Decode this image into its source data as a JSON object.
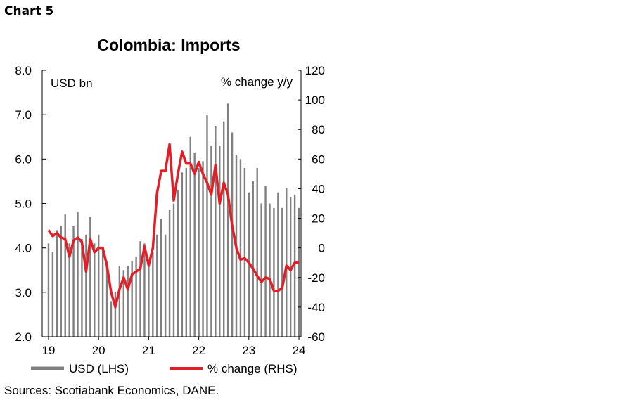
{
  "page": {
    "label": "Chart 5",
    "source": "Sources: Scotiabank Economics, DANE."
  },
  "chart_data": {
    "type": "bar+line",
    "title": "Colombia: Imports",
    "left_axis": {
      "unit_label": "USD bn",
      "ylim": [
        2.0,
        8.0
      ],
      "ticks": [
        "2.0",
        "3.0",
        "4.0",
        "5.0",
        "6.0",
        "7.0",
        "8.0"
      ]
    },
    "right_axis": {
      "unit_label": "% change y/y",
      "ylim": [
        -60,
        120
      ],
      "ticks": [
        "-60",
        "-40",
        "-20",
        "0",
        "20",
        "40",
        "60",
        "80",
        "100",
        "120"
      ]
    },
    "x_ticks": [
      "19",
      "20",
      "21",
      "22",
      "23",
      "24"
    ],
    "months": [
      "2019-01",
      "2019-02",
      "2019-03",
      "2019-04",
      "2019-05",
      "2019-06",
      "2019-07",
      "2019-08",
      "2019-09",
      "2019-10",
      "2019-11",
      "2019-12",
      "2020-01",
      "2020-02",
      "2020-03",
      "2020-04",
      "2020-05",
      "2020-06",
      "2020-07",
      "2020-08",
      "2020-09",
      "2020-10",
      "2020-11",
      "2020-12",
      "2021-01",
      "2021-02",
      "2021-03",
      "2021-04",
      "2021-05",
      "2021-06",
      "2021-07",
      "2021-08",
      "2021-09",
      "2021-10",
      "2021-11",
      "2021-12",
      "2022-01",
      "2022-02",
      "2022-03",
      "2022-04",
      "2022-05",
      "2022-06",
      "2022-07",
      "2022-08",
      "2022-09",
      "2022-10",
      "2022-11",
      "2022-12",
      "2023-01",
      "2023-02",
      "2023-03",
      "2023-04",
      "2023-05",
      "2023-06",
      "2023-07",
      "2023-08",
      "2023-09",
      "2023-10",
      "2023-11",
      "2023-12",
      "2024-01"
    ],
    "series": [
      {
        "name": "USD (LHS)",
        "type": "bar",
        "axis": "left",
        "color": "#808080",
        "values": [
          4.1,
          3.9,
          4.4,
          4.5,
          4.75,
          4.1,
          4.5,
          4.8,
          4.2,
          4.3,
          4.7,
          4.1,
          4.3,
          4.0,
          3.7,
          2.8,
          3.0,
          3.6,
          3.5,
          3.6,
          3.7,
          3.8,
          4.15,
          4.1,
          3.6,
          3.9,
          4.3,
          4.65,
          4.3,
          4.85,
          5.0,
          5.3,
          5.7,
          5.8,
          6.5,
          6.15,
          5.8,
          5.95,
          7.0,
          6.3,
          6.75,
          6.3,
          6.85,
          7.25,
          6.6,
          6.1,
          6.0,
          5.8,
          5.25,
          5.5,
          5.8,
          5.0,
          5.4,
          5.0,
          4.9,
          5.25,
          4.9,
          5.35,
          5.15,
          5.2,
          4.9
        ]
      },
      {
        "name": "% change (RHS)",
        "type": "line",
        "axis": "right",
        "color": "#e41e26",
        "values": [
          12,
          8,
          10,
          7,
          6,
          -6,
          5,
          7,
          4,
          -16,
          6,
          -3,
          0,
          0,
          -12,
          -30,
          -40,
          -28,
          -20,
          -28,
          -18,
          -16,
          -14,
          1,
          -12,
          0,
          37,
          52,
          52,
          70,
          32,
          50,
          65,
          57,
          57,
          50,
          58,
          50,
          44,
          36,
          56,
          30,
          44,
          36,
          15,
          0,
          -8,
          -7,
          -10,
          -14,
          -19,
          -23,
          -20,
          -21,
          -29,
          -29,
          -27,
          -12,
          -15,
          -10,
          -10
        ]
      }
    ],
    "legend": {
      "placement": "bottom",
      "entries": [
        "USD (LHS)",
        "% change (RHS)"
      ]
    },
    "grid": false
  }
}
